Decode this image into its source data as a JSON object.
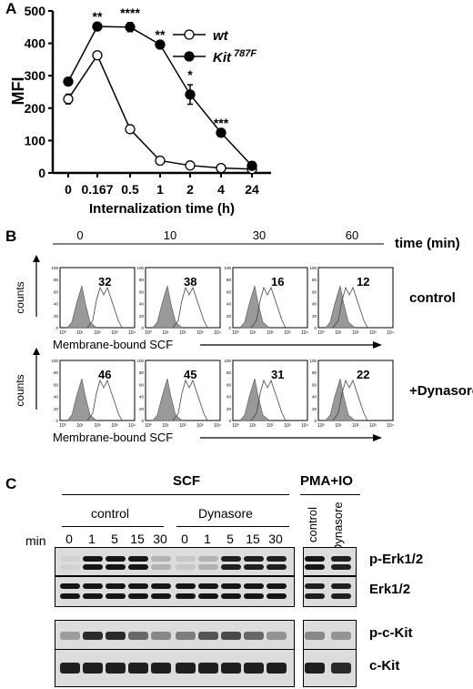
{
  "panel_a": {
    "letter": "A",
    "chart_data": {
      "type": "line",
      "categories": [
        "0",
        "0.167",
        "0.5",
        "1",
        "2",
        "4",
        "24"
      ],
      "xlabel": "Internalization time (h)",
      "ylabel": "MFI",
      "ylim": [
        0,
        500
      ],
      "yticks": [
        "0",
        "100",
        "200",
        "300",
        "400",
        "500"
      ],
      "series": [
        {
          "name": "wt",
          "marker": "open-circle",
          "values": [
            228,
            363,
            135,
            38,
            23,
            15,
            12
          ],
          "errors": [
            15,
            0,
            0,
            0,
            0,
            0,
            0
          ]
        },
        {
          "name": "Kit",
          "name_sup": "787F",
          "marker": "filled-circle",
          "values": [
            282,
            452,
            450,
            396,
            242,
            124,
            22
          ],
          "errors": [
            0,
            0,
            14,
            0,
            30,
            0,
            0
          ]
        }
      ],
      "significance": [
        "",
        "**",
        "****",
        "**",
        "*",
        "***",
        ""
      ]
    }
  },
  "panel_b": {
    "letter": "B",
    "time_label": "time (min)",
    "times": [
      "0",
      "10",
      "30",
      "60"
    ],
    "y_label": "counts",
    "x_label": "Membrane-bound SCF",
    "x_ticks": [
      "10⁰",
      "10¹",
      "10²",
      "10³",
      "10⁴"
    ],
    "y_ticks": [
      "0",
      "20",
      "40",
      "60",
      "80",
      "100"
    ],
    "rows": [
      {
        "label": "control",
        "values": [
          "32",
          "38",
          "16",
          "12"
        ]
      },
      {
        "label": "+Dynasore",
        "values": [
          "46",
          "45",
          "31",
          "22"
        ]
      }
    ]
  },
  "panel_c": {
    "letter": "C",
    "scf_label": "SCF",
    "pma_label": "PMA+IO",
    "control_label": "control",
    "dynasore_label": "Dynasore",
    "min_label": "min",
    "lanes": [
      "0",
      "1",
      "5",
      "15",
      "30",
      "0",
      "1",
      "5",
      "15",
      "30"
    ],
    "pma_lanes": [
      "control",
      "Dynasore"
    ],
    "blots": [
      {
        "label": "p-Erk1/2",
        "intensity": [
          0.05,
          0.95,
          0.95,
          0.95,
          0.2,
          0.1,
          0.2,
          0.9,
          0.9,
          0.9,
          0.95,
          0.9
        ]
      },
      {
        "label": "Erk1/2",
        "intensity": [
          0.95,
          0.95,
          0.95,
          0.95,
          0.95,
          0.95,
          0.95,
          0.95,
          0.95,
          0.95,
          0.9,
          0.9
        ]
      },
      {
        "label": "p-c-Kit",
        "intensity": [
          0.3,
          0.85,
          0.85,
          0.55,
          0.4,
          0.45,
          0.65,
          0.7,
          0.55,
          0.35,
          0.4,
          0.35
        ]
      },
      {
        "label": "c-Kit",
        "intensity": [
          0.9,
          0.9,
          0.9,
          0.9,
          0.9,
          0.9,
          0.9,
          0.9,
          0.9,
          0.9,
          0.9,
          0.85
        ]
      }
    ]
  }
}
